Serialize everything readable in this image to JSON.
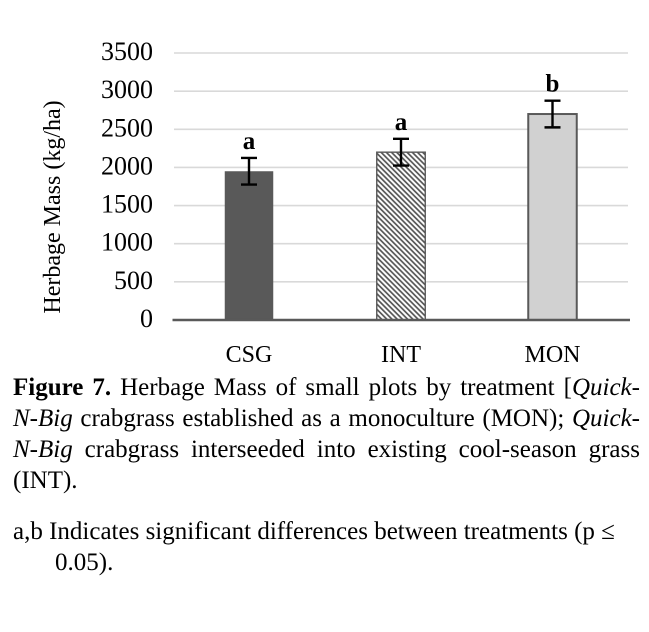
{
  "chart_data": {
    "type": "bar",
    "title": "",
    "categories": [
      "CSG",
      "INT",
      "MON"
    ],
    "values": [
      1950,
      2200,
      2700
    ],
    "error_values": [
      175,
      175,
      175
    ],
    "significance_letters": [
      "a",
      "a",
      "b"
    ],
    "ylabel": "Herbage Mass (kg/ha)",
    "xlabel": "",
    "ylim": [
      0,
      3500
    ],
    "ytick_interval": 500,
    "ytick_labels": [
      "0",
      "500",
      "1000",
      "1500",
      "2000",
      "2500",
      "3000",
      "3500"
    ],
    "grid": "horizontal-only",
    "legend_position": "none",
    "bar_styles": [
      {
        "name": "csg",
        "fill": "solid",
        "color": "#595959",
        "border": "none"
      },
      {
        "name": "int",
        "fill": "diagonal-hatch",
        "color": "#545454",
        "background": "#ffffff",
        "border": "#595959"
      },
      {
        "name": "mon",
        "fill": "solid",
        "color": "#d1d1d1",
        "border": "#595959"
      }
    ]
  },
  "colors": {
    "gridline": "#d9d9d9",
    "axis_line": "#595959",
    "error_bar": "#000000",
    "text": "#000000",
    "background": "#ffffff"
  },
  "caption": {
    "lines": [
      {
        "justify_last": true,
        "runs": [
          {
            "text": "Figure 7.",
            "bold": true
          },
          {
            "text": " Herbage Mass of small plots by treatment ["
          },
          {
            "text": "Quick-",
            "italic": true
          }
        ]
      },
      {
        "justify_last": true,
        "runs": [
          {
            "text": "N-Big",
            "italic": true
          },
          {
            "text": " crabgrass established as a monoculture (MON); "
          },
          {
            "text": "Quick-",
            "italic": true
          }
        ]
      },
      {
        "justify_last": true,
        "runs": [
          {
            "text": "N-Big",
            "italic": true
          },
          {
            "text": " crabgrass interseeded into existing cool-season grass"
          }
        ]
      },
      {
        "justify_last": false,
        "runs": [
          {
            "text": "(INT)."
          }
        ]
      }
    ]
  },
  "footnote": {
    "lines": [
      {
        "indent": 0,
        "text": "a,b Indicates significant differences between treatments (p ≤"
      },
      {
        "indent": 42,
        "text": "0.05)."
      }
    ]
  }
}
